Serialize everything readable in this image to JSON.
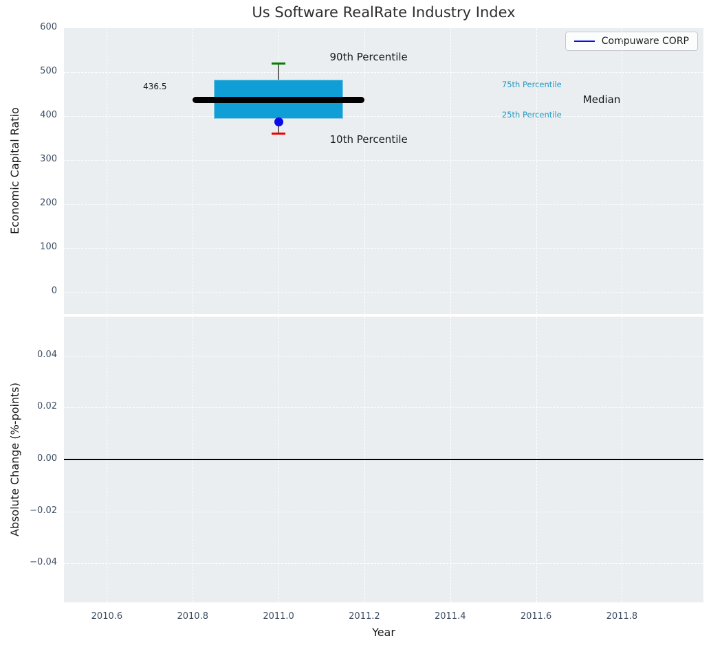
{
  "figure": {
    "title": "Us Software RealRate Industry Index",
    "background_color": "#ffffff",
    "axes_facecolor": "#eaeef0",
    "grid_color": "#ffffff",
    "tick_color": "#3d4e63"
  },
  "legend": {
    "label": "Compuware CORP",
    "line_color": "#0b0bea",
    "position": "upper right"
  },
  "chart_data": [
    {
      "type": "boxplot",
      "title": "Us Software RealRate Industry Index",
      "xlabel": "Year",
      "ylabel": "Economic Capital Ratio",
      "xlim": [
        2010.5,
        2011.99
      ],
      "ylim": [
        -50,
        600
      ],
      "grid": "white dashed, on",
      "xticks": {
        "values": [
          2010.6,
          2010.8,
          2011.0,
          2011.2,
          2011.4,
          2011.6,
          2011.8
        ],
        "labels": [
          "2010.6",
          "2010.8",
          "2011.0",
          "2011.2",
          "2011.4",
          "2011.6",
          "2011.8"
        ],
        "show_labels": false
      },
      "yticks": {
        "values": [
          0,
          100,
          200,
          300,
          400,
          500,
          600
        ],
        "labels": [
          "0",
          "100",
          "200",
          "300",
          "400",
          "500",
          "600"
        ]
      },
      "box": {
        "x_center": 2011.0,
        "box_x_range": [
          2010.85,
          2011.15
        ],
        "median_x_range": [
          2010.8,
          2011.2
        ],
        "p10": 360,
        "q1": 393,
        "median": 436.5,
        "q3": 483,
        "p90": 520,
        "cap_halfwidth_years": 0.016,
        "box_color": "#0f9ed5",
        "box_edge_color": "#8ecbe4",
        "median_color": "#000000",
        "p90_cap_color": "#007f00",
        "p10_cap_color": "#ee0000",
        "whisker_color": "#666666"
      },
      "company_point": {
        "name": "Compuware CORP",
        "x": 2011.0,
        "y": 387,
        "color": "#0b0bea"
      },
      "annotations": [
        {
          "text": "436.5",
          "x": 2010.712,
          "y": 467,
          "color": "#1a1a1a",
          "size": "md"
        },
        {
          "text": "90th Percentile",
          "x": 2011.21,
          "y": 535,
          "color": "#1a1a1a",
          "size": "lg"
        },
        {
          "text": "10th Percentile",
          "x": 2011.21,
          "y": 347,
          "color": "#1a1a1a",
          "size": "lg"
        },
        {
          "text": "75th Percentile",
          "x": 2011.59,
          "y": 472,
          "color": "#1f9ac4",
          "size": "sm"
        },
        {
          "text": "25th Percentile",
          "x": 2011.59,
          "y": 403,
          "color": "#1f9ac4",
          "size": "sm"
        },
        {
          "text": "Median",
          "x": 2011.753,
          "y": 437,
          "color": "#111111",
          "size": "lg"
        }
      ]
    },
    {
      "type": "line",
      "xlabel": "Year",
      "ylabel": "Absolute Change (%-points)",
      "xlim": [
        2010.5,
        2011.99
      ],
      "ylim": [
        -0.055,
        0.055
      ],
      "grid": "white dashed, on",
      "xticks": {
        "values": [
          2010.6,
          2010.8,
          2011.0,
          2011.2,
          2011.4,
          2011.6,
          2011.8
        ],
        "labels": [
          "2010.6",
          "2010.8",
          "2011.0",
          "2011.2",
          "2011.4",
          "2011.6",
          "2011.8"
        ],
        "show_labels": true
      },
      "yticks": {
        "values": [
          0.04,
          0.02,
          0.0,
          -0.02,
          -0.04
        ],
        "labels": [
          "0.04",
          "0.02",
          "0.00",
          "−0.02",
          "−0.04"
        ]
      },
      "zero_line": {
        "y": 0.0,
        "color": "#000000"
      },
      "series": [
        {
          "name": "Compuware CORP",
          "color": "#0b0bea",
          "x": [],
          "values": []
        }
      ]
    }
  ]
}
